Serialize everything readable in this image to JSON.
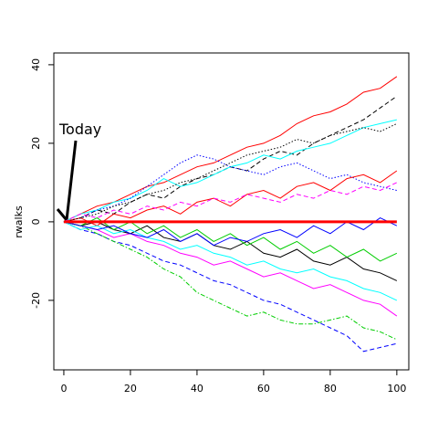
{
  "chart_data": {
    "type": "line",
    "y_label": "rwalks",
    "annotation": "Today",
    "xlim": [
      -3,
      103.6
    ],
    "ylim": [
      -37.7,
      43
    ],
    "xticks": [
      0,
      20,
      40,
      60,
      80,
      100
    ],
    "yticks": [
      -20,
      0,
      20,
      40
    ],
    "x": [
      0,
      5,
      10,
      15,
      20,
      25,
      30,
      35,
      40,
      45,
      50,
      55,
      60,
      65,
      70,
      75,
      80,
      85,
      90,
      95,
      100
    ],
    "series": [
      {
        "color": "#ff0000",
        "dash": "solid",
        "values": [
          0,
          2,
          4,
          5,
          7,
          9,
          10,
          12,
          14,
          15,
          17,
          19,
          20,
          22,
          25,
          27,
          28,
          30,
          33,
          34,
          37
        ]
      },
      {
        "color": "#000000",
        "dash": "dashed",
        "values": [
          0,
          1,
          3,
          2,
          5,
          7,
          6,
          9,
          11,
          12,
          14,
          13,
          16,
          18,
          17,
          20,
          22,
          24,
          26,
          29,
          32
        ]
      },
      {
        "color": "#0000ff",
        "dash": "dashed",
        "values": [
          0,
          -2,
          -3,
          -5,
          -6,
          -8,
          -10,
          -11,
          -13,
          -15,
          -16,
          -18,
          -20,
          -21,
          -23,
          -25,
          -27,
          -29,
          -33,
          -32,
          -31
        ]
      },
      {
        "color": "#00cd00",
        "dash": "dashdot",
        "values": [
          0,
          -1,
          -3,
          -5,
          -7,
          -9,
          -12,
          -14,
          -18,
          -20,
          -22,
          -24,
          -23,
          -25,
          -26,
          -26,
          -25,
          -24,
          -27,
          -28,
          -30
        ]
      },
      {
        "color": "#00ffff",
        "dash": "solid",
        "values": [
          0,
          2,
          3,
          5,
          6,
          8,
          11,
          9,
          10,
          12,
          14,
          15,
          17,
          16,
          18,
          19,
          20,
          22,
          24,
          25,
          26
        ]
      },
      {
        "color": "#ff00ff",
        "dash": "solid",
        "values": [
          0,
          -1,
          -2,
          -4,
          -3,
          -5,
          -6,
          -8,
          -9,
          -11,
          -10,
          -12,
          -14,
          -13,
          -15,
          -17,
          -16,
          -18,
          -20,
          -21,
          -24
        ]
      },
      {
        "color": "#0000ff",
        "dash": "dotted",
        "values": [
          0,
          1,
          3,
          4,
          6,
          9,
          12,
          15,
          17,
          16,
          14,
          13,
          12,
          14,
          15,
          13,
          11,
          12,
          10,
          9,
          8
        ]
      },
      {
        "color": "#000000",
        "dash": "solid",
        "values": [
          0,
          -1,
          0,
          -2,
          -3,
          -1,
          -4,
          -5,
          -3,
          -6,
          -7,
          -5,
          -8,
          -9,
          -7,
          -10,
          -11,
          -9,
          -12,
          -13,
          -15
        ]
      },
      {
        "color": "#ff0000",
        "dash": "solid",
        "values": [
          0,
          1,
          -1,
          2,
          1,
          3,
          4,
          2,
          5,
          6,
          4,
          7,
          8,
          6,
          9,
          10,
          8,
          11,
          12,
          10,
          13
        ]
      },
      {
        "color": "#00cd00",
        "dash": "solid",
        "values": [
          0,
          -1,
          1,
          -2,
          0,
          -3,
          -1,
          -4,
          -2,
          -5,
          -3,
          -6,
          -4,
          -7,
          -5,
          -8,
          -6,
          -9,
          -7,
          -10,
          -8
        ]
      },
      {
        "color": "#ff00ff",
        "dash": "dashed",
        "values": [
          0,
          2,
          1,
          3,
          2,
          4,
          3,
          5,
          4,
          6,
          5,
          7,
          6,
          5,
          7,
          6,
          8,
          7,
          9,
          8,
          10
        ]
      },
      {
        "color": "#00ffff",
        "dash": "solid",
        "values": [
          0,
          -2,
          -1,
          -3,
          -2,
          -4,
          -5,
          -7,
          -6,
          -8,
          -9,
          -11,
          -10,
          -12,
          -13,
          -12,
          -14,
          -15,
          -17,
          -18,
          -20
        ]
      },
      {
        "color": "#000000",
        "dash": "dotted",
        "values": [
          0,
          1,
          2,
          4,
          5,
          7,
          8,
          10,
          11,
          13,
          15,
          17,
          18,
          19,
          21,
          20,
          22,
          23,
          24,
          23,
          25
        ]
      },
      {
        "color": "#0000ff",
        "dash": "solid",
        "values": [
          0,
          -1,
          -2,
          -1,
          -3,
          -4,
          -2,
          -5,
          -3,
          -6,
          -4,
          -5,
          -3,
          -2,
          -4,
          -1,
          -3,
          0,
          -2,
          1,
          -1
        ]
      },
      {
        "color": "#ff0000",
        "dash": "solid",
        "width": 3,
        "values": [
          0,
          0,
          0,
          0,
          0,
          0,
          0,
          0,
          0,
          0,
          0,
          0,
          0,
          0,
          0,
          0,
          0,
          0,
          0,
          0,
          0
        ]
      }
    ]
  }
}
